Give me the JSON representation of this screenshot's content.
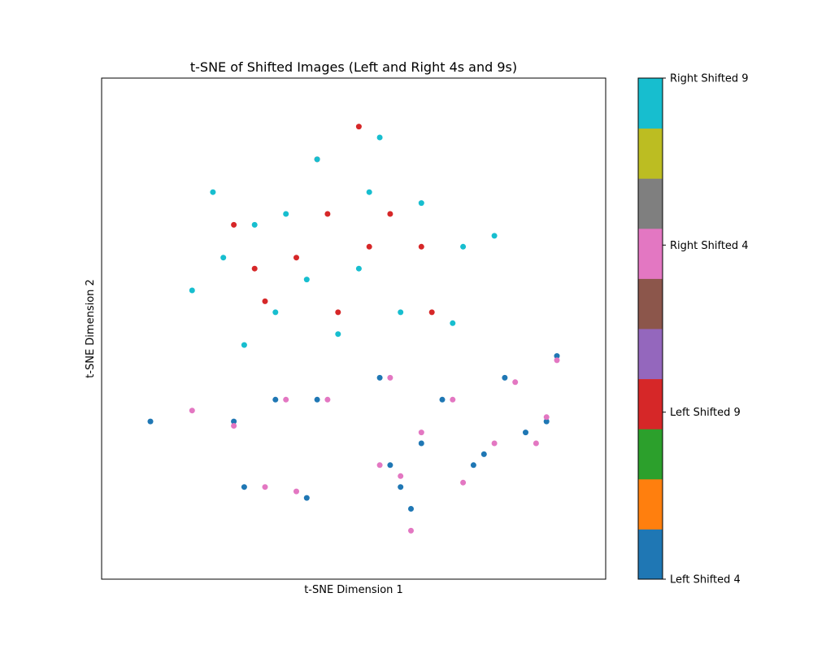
{
  "chart_data": {
    "type": "scatter",
    "title": "t-SNE of Shifted Images (Left and Right 4s and 9s)",
    "xlabel": "t-SNE Dimension 1",
    "ylabel": "t-SNE Dimension 2",
    "xticks": "none",
    "yticks": "none",
    "grid": false,
    "colorbar": {
      "placement": "right",
      "colormap": "tab10",
      "colors": [
        "#1f77b4",
        "#ff7f0e",
        "#2ca02c",
        "#d62728",
        "#9467bd",
        "#8c564b",
        "#e377c2",
        "#7f7f7f",
        "#bcbd22",
        "#17becf"
      ],
      "ticks": [
        {
          "value": 0,
          "label": "Left Shifted 4"
        },
        {
          "value": 3,
          "label": "Left Shifted 9"
        },
        {
          "value": 6,
          "label": "Right Shifted 4"
        },
        {
          "value": 9,
          "label": "Right Shifted 9"
        }
      ]
    },
    "series": [
      {
        "name": "Left Shifted 4",
        "class": 0,
        "color": "#1f77b4",
        "points": [
          [
            0.4,
            -0.3
          ],
          [
            0.1,
            -0.2
          ],
          [
            -0.2,
            -0.3
          ],
          [
            -0.4,
            -0.3
          ],
          [
            -0.6,
            -0.4
          ],
          [
            -1.0,
            -0.4
          ],
          [
            0.3,
            -0.5
          ],
          [
            0.15,
            -0.6
          ],
          [
            0.25,
            -0.8
          ],
          [
            -0.55,
            -0.7
          ],
          [
            0.9,
            -0.4
          ],
          [
            0.8,
            -0.45
          ],
          [
            0.6,
            -0.55
          ],
          [
            0.7,
            -0.2
          ],
          [
            0.95,
            -0.1
          ],
          [
            0.55,
            -0.6
          ],
          [
            0.2,
            -0.7
          ],
          [
            -0.25,
            -0.75
          ]
        ]
      },
      {
        "name": "Left Shifted 9",
        "class": 3,
        "color": "#d62728",
        "points": [
          [
            0.0,
            0.95
          ],
          [
            -0.2,
            0.8
          ],
          [
            -0.5,
            0.3
          ],
          [
            -0.1,
            0.1
          ],
          [
            0.3,
            0.4
          ],
          [
            -0.6,
            0.5
          ],
          [
            0.35,
            0.1
          ],
          [
            -0.3,
            0.35
          ],
          [
            0.05,
            0.4
          ],
          [
            -0.45,
            0.15
          ],
          [
            0.15,
            0.55
          ],
          [
            -0.15,
            0.55
          ]
        ]
      },
      {
        "name": "Right Shifted 4",
        "class": 6,
        "color": "#e377c2",
        "points": [
          [
            0.45,
            -0.3
          ],
          [
            0.15,
            -0.2
          ],
          [
            -0.15,
            -0.3
          ],
          [
            -0.35,
            -0.3
          ],
          [
            -0.6,
            -0.42
          ],
          [
            -0.8,
            -0.35
          ],
          [
            0.3,
            -0.45
          ],
          [
            0.1,
            -0.6
          ],
          [
            0.25,
            -0.9
          ],
          [
            -0.45,
            -0.7
          ],
          [
            0.9,
            -0.38
          ],
          [
            0.85,
            -0.5
          ],
          [
            0.65,
            -0.5
          ],
          [
            0.75,
            -0.22
          ],
          [
            0.95,
            -0.12
          ],
          [
            0.5,
            -0.68
          ],
          [
            0.2,
            -0.65
          ],
          [
            -0.3,
            -0.72
          ]
        ]
      },
      {
        "name": "Right Shifted 9",
        "class": 9,
        "color": "#17becf",
        "points": [
          [
            -0.8,
            0.2
          ],
          [
            -0.5,
            0.5
          ],
          [
            -0.2,
            0.8
          ],
          [
            0.1,
            0.9
          ],
          [
            0.3,
            0.6
          ],
          [
            0.5,
            0.4
          ],
          [
            -0.4,
            0.1
          ],
          [
            0.0,
            0.3
          ],
          [
            0.2,
            0.1
          ],
          [
            -0.1,
            0.0
          ],
          [
            -0.7,
            0.65
          ],
          [
            0.45,
            0.05
          ],
          [
            -0.65,
            0.35
          ],
          [
            0.65,
            0.45
          ],
          [
            -0.35,
            0.55
          ],
          [
            0.05,
            0.65
          ],
          [
            -0.25,
            0.25
          ],
          [
            -0.55,
            -0.05
          ]
        ]
      }
    ]
  }
}
